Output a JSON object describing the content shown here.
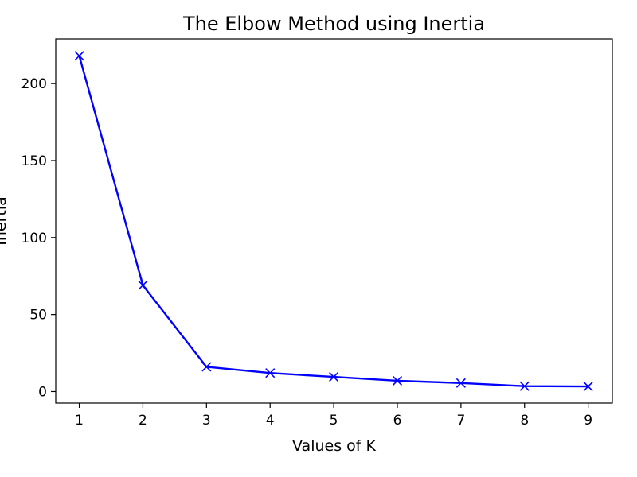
{
  "chart_data": {
    "type": "line",
    "title": "The Elbow Method using Inertia",
    "xlabel": "Values of K",
    "ylabel": "Inertia",
    "x": [
      1,
      2,
      3,
      4,
      5,
      6,
      7,
      8,
      9
    ],
    "series": [
      {
        "values": [
          218,
          69,
          16,
          12,
          9.5,
          7,
          5.5,
          3.5,
          3.3
        ],
        "color": "#0000ff",
        "marker": "x"
      }
    ],
    "xlim": [
      0.63,
      9.38
    ],
    "ylim": [
      -7.5,
      229
    ],
    "xticks": [
      1,
      2,
      3,
      4,
      5,
      6,
      7,
      8,
      9
    ],
    "yticks": [
      0,
      50,
      100,
      150,
      200
    ],
    "grid": false,
    "legend": "none"
  }
}
